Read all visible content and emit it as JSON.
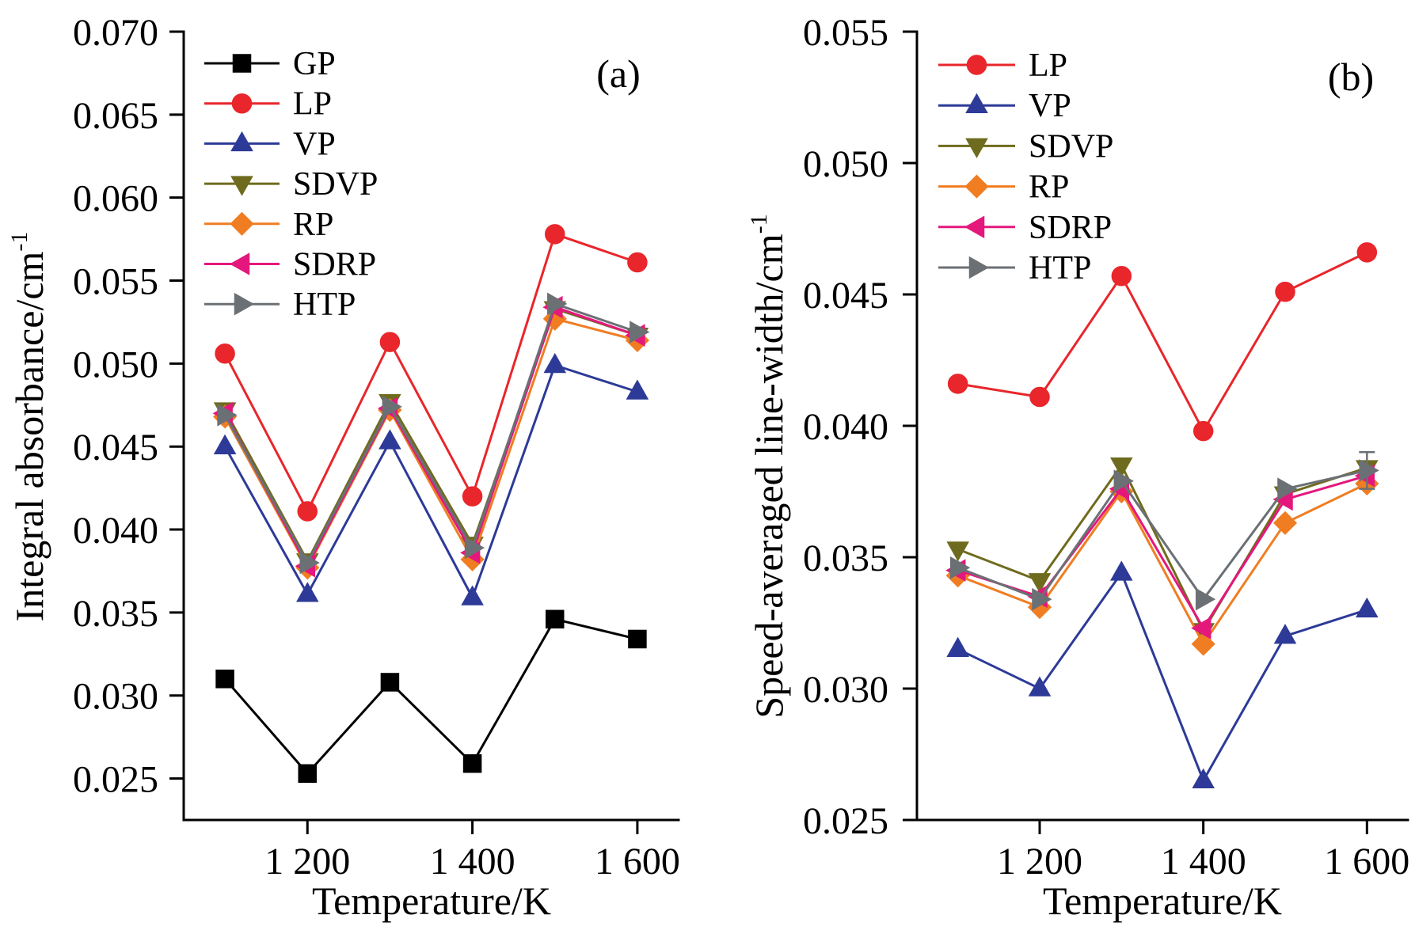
{
  "chart_data": [
    {
      "panel_label": "(a)",
      "type": "line",
      "xlabel": "Temperature/K",
      "ylabel": "Integral absorbance/cm",
      "ylabel_superscript": "-1",
      "x": [
        1100,
        1200,
        1300,
        1400,
        1500,
        1600
      ],
      "xlim": [
        1050,
        1650
      ],
      "xticks": [
        1200,
        1400,
        1600
      ],
      "xtick_labels": [
        "1 200",
        "1 400",
        "1 600"
      ],
      "ylim": [
        0.0225,
        0.07
      ],
      "yticks": [
        0.07,
        0.065,
        0.06,
        0.055,
        0.05,
        0.045,
        0.04,
        0.035,
        0.03,
        0.025
      ],
      "ytick_labels": [
        "0.070",
        "0.065",
        "0.060",
        "0.055",
        "0.050",
        "0.045",
        "0.040",
        "0.035",
        "0.030",
        "0.025"
      ],
      "grid": false,
      "legend_position": "top-left",
      "series": [
        {
          "name": "GP",
          "color": "#000000",
          "marker": "square",
          "values": [
            0.031,
            0.0253,
            0.0308,
            0.0259,
            0.0346,
            0.0334
          ]
        },
        {
          "name": "LP",
          "color": "#e8262b",
          "marker": "circle",
          "values": [
            0.0506,
            0.0411,
            0.0513,
            0.042,
            0.0578,
            0.0561
          ]
        },
        {
          "name": "VP",
          "color": "#2d3a97",
          "marker": "triangle-up",
          "values": [
            0.045,
            0.0361,
            0.0453,
            0.0359,
            0.0499,
            0.0483
          ]
        },
        {
          "name": "SDVP",
          "color": "#6f6b1e",
          "marker": "triangle-down",
          "values": [
            0.0472,
            0.0381,
            0.0477,
            0.0391,
            0.0533,
            0.0517
          ]
        },
        {
          "name": "RP",
          "color": "#f07d22",
          "marker": "diamond",
          "values": [
            0.0468,
            0.0377,
            0.0472,
            0.0382,
            0.0527,
            0.0514
          ]
        },
        {
          "name": "SDRP",
          "color": "#e4187c",
          "marker": "triangle-left",
          "values": [
            0.047,
            0.0378,
            0.0473,
            0.0386,
            0.0534,
            0.0517
          ]
        },
        {
          "name": "HTP",
          "color": "#6b7075",
          "marker": "triangle-right",
          "values": [
            0.0469,
            0.038,
            0.0474,
            0.0389,
            0.0536,
            0.0519
          ]
        }
      ]
    },
    {
      "panel_label": "(b)",
      "type": "line",
      "xlabel": "Temperature/K",
      "ylabel": "Speed-averaged line-width/cm",
      "ylabel_superscript": "-1",
      "x": [
        1100,
        1200,
        1300,
        1400,
        1500,
        1600
      ],
      "xlim": [
        1050,
        1650
      ],
      "xticks": [
        1200,
        1400,
        1600
      ],
      "xtick_labels": [
        "1 200",
        "1 400",
        "1 600"
      ],
      "ylim": [
        0.025,
        0.055
      ],
      "yticks": [
        0.055,
        0.05,
        0.045,
        0.04,
        0.035,
        0.03,
        0.025
      ],
      "ytick_labels": [
        "0.055",
        "0.050",
        "0.045",
        "0.040",
        "0.035",
        "0.030",
        "0.025"
      ],
      "grid": false,
      "legend_position": "top-left",
      "series": [
        {
          "name": "LP",
          "color": "#e8262b",
          "marker": "circle",
          "values": [
            0.0416,
            0.0411,
            0.0457,
            0.0398,
            0.0451,
            0.0466
          ]
        },
        {
          "name": "VP",
          "color": "#2d3a97",
          "marker": "triangle-up",
          "values": [
            0.0315,
            0.03,
            0.0344,
            0.0265,
            0.032,
            0.033
          ]
        },
        {
          "name": "SDVP",
          "color": "#6f6b1e",
          "marker": "triangle-down",
          "values": [
            0.0353,
            0.0341,
            0.0385,
            0.0322,
            0.0374,
            0.0384
          ]
        },
        {
          "name": "RP",
          "color": "#f07d22",
          "marker": "diamond",
          "values": [
            0.0343,
            0.0331,
            0.0375,
            0.0317,
            0.0363,
            0.0378
          ]
        },
        {
          "name": "SDRP",
          "color": "#e4187c",
          "marker": "triangle-left",
          "values": [
            0.0345,
            0.0335,
            0.0376,
            0.0323,
            0.0372,
            0.0381
          ]
        },
        {
          "name": "HTP",
          "color": "#6b7075",
          "marker": "triangle-right",
          "values": [
            0.0346,
            0.0334,
            0.0379,
            0.0334,
            0.0376,
            0.0383
          ],
          "yerr": [
            0,
            0,
            0,
            0,
            0,
            0.0007
          ]
        }
      ]
    }
  ]
}
